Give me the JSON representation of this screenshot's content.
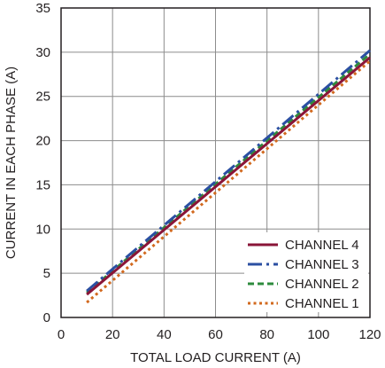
{
  "chart_data": {
    "type": "line",
    "title": "",
    "xlabel": "TOTAL LOAD CURRENT (A)",
    "ylabel": "CURRENT IN EACH PHASE (A)",
    "xlim": [
      0,
      120
    ],
    "ylim": [
      0,
      35
    ],
    "xticks": [
      0,
      20,
      40,
      60,
      80,
      100,
      120
    ],
    "yticks": [
      0,
      5,
      10,
      15,
      20,
      25,
      30,
      35
    ],
    "grid": true,
    "legend_position": "bottom-right",
    "series": [
      {
        "name": "CHANNEL 4",
        "color": "#8a1538",
        "dash": "solid",
        "x": [
          10,
          120
        ],
        "y": [
          2.6,
          29.4
        ]
      },
      {
        "name": "CHANNEL 3",
        "color": "#2b4fa2",
        "dash": "longdash",
        "x": [
          10,
          120
        ],
        "y": [
          3.0,
          30.2
        ]
      },
      {
        "name": "CHANNEL 2",
        "color": "#2e8b3e",
        "dash": "dash",
        "x": [
          10,
          120
        ],
        "y": [
          2.8,
          29.8
        ]
      },
      {
        "name": "CHANNEL 1",
        "color": "#d2691e",
        "dash": "dot",
        "x": [
          10,
          120
        ],
        "y": [
          1.7,
          29.0
        ]
      }
    ]
  }
}
